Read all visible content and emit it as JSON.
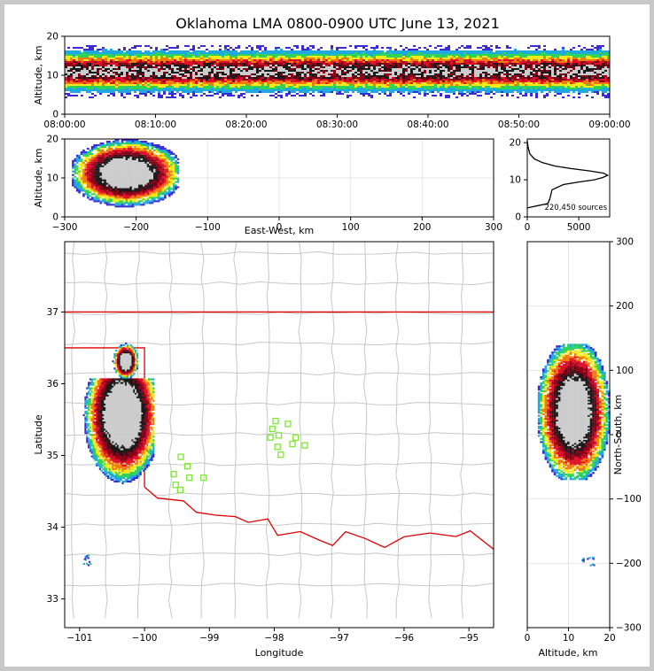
{
  "chart_data": [
    {
      "type": "heatmap",
      "panel": "altitude-time",
      "title": "Oklahoma LMA 0800-0900 UTC June 13, 2021",
      "ylabel": "Altitude, km",
      "ylim": [
        0,
        20
      ],
      "yticks": [
        "0",
        "10",
        "20"
      ],
      "xlim_minutes": [
        0,
        60
      ],
      "xticks": [
        "08:00:00",
        "08:10:00",
        "08:20:00",
        "08:30:00",
        "08:40:00",
        "08:50:00",
        "09:00:00"
      ],
      "density_peak_altitude_km": 11
    },
    {
      "type": "heatmap",
      "panel": "altitude-east-west",
      "xlabel": "East-West, km",
      "ylabel": "Altitude, km",
      "xlim": [
        -300,
        300
      ],
      "ylim": [
        0,
        20
      ],
      "xticks": [
        "−300",
        "−200",
        "−100",
        "0",
        "100",
        "200",
        "300"
      ],
      "yticks": [
        "0",
        "10",
        "20"
      ],
      "source_extent_ew_km": [
        -290,
        -140
      ],
      "grid": true
    },
    {
      "type": "line",
      "panel": "altitude-histogram",
      "annotation": "220,450 sources",
      "xlim": [
        0,
        8000
      ],
      "ylim": [
        0,
        21
      ],
      "xticks": [
        "0",
        "5000"
      ],
      "yticks": [
        "0",
        "10",
        "20"
      ],
      "x": [
        0,
        2000,
        2200,
        2400,
        3500,
        5000,
        6500,
        7300,
        7800,
        7400,
        6000,
        4300,
        2700,
        1500,
        700,
        250,
        80,
        0
      ],
      "y": [
        2.4,
        3.6,
        5.0,
        7.3,
        8.7,
        9.4,
        10.0,
        10.6,
        11.2,
        11.8,
        12.4,
        13.0,
        13.7,
        14.6,
        15.6,
        17.0,
        18.8,
        20.5
      ]
    },
    {
      "type": "scatter",
      "panel": "plan-view-map",
      "xlabel": "Longitude",
      "ylabel": "Latitude",
      "xlim": [
        -101.23,
        -94.62
      ],
      "ylim": [
        32.6,
        37.98
      ],
      "xticks": [
        "−101",
        "−100",
        "−99",
        "−98",
        "−97",
        "−96",
        "−95"
      ],
      "yticks": [
        "33",
        "34",
        "35",
        "36",
        "37"
      ],
      "stations": [
        [
          -97.98,
          35.48
        ],
        [
          -97.79,
          35.44
        ],
        [
          -98.03,
          35.37
        ],
        [
          -97.93,
          35.28
        ],
        [
          -98.06,
          35.25
        ],
        [
          -97.67,
          35.25
        ],
        [
          -97.72,
          35.16
        ],
        [
          -97.53,
          35.14
        ],
        [
          -97.95,
          35.12
        ],
        [
          -97.9,
          35.01
        ],
        [
          -99.44,
          34.98
        ],
        [
          -99.34,
          34.85
        ],
        [
          -99.55,
          34.74
        ],
        [
          -99.31,
          34.69
        ],
        [
          -99.09,
          34.69
        ],
        [
          -99.52,
          34.59
        ],
        [
          -99.45,
          34.52
        ]
      ],
      "source_regions": [
        {
          "lon": -100.25,
          "lat": 35.4,
          "extent": "100.9W-99.85W, 34.65N-36.5N"
        },
        {
          "lon": -100.9,
          "lat": 33.55,
          "extent": "small cluster"
        }
      ]
    },
    {
      "type": "heatmap",
      "panel": "north-south-altitude",
      "xlabel": "Altitude, km",
      "ylabel": "North-South, km",
      "xlim": [
        0,
        20
      ],
      "ylim": [
        -300,
        300
      ],
      "xticks": [
        "0",
        "10",
        "20"
      ],
      "yticks": [
        "300",
        "200",
        "100",
        "0",
        "−100",
        "−200",
        "−300"
      ],
      "source_extent_ns_km": [
        -70,
        140
      ],
      "grid": true
    }
  ],
  "colors": {
    "lowest": "#3a2bd6",
    "low": "#1fa9e0",
    "mid_low": "#2fd35a",
    "mid": "#f2e81a",
    "mid_high": "#f07a10",
    "high": "#e0102a",
    "higher": "#8a0018",
    "top": "#1a1a1a",
    "peak": "#cccccc",
    "state_border": "#e00000",
    "county": "#c8c8c8",
    "station": "#7fe832"
  }
}
